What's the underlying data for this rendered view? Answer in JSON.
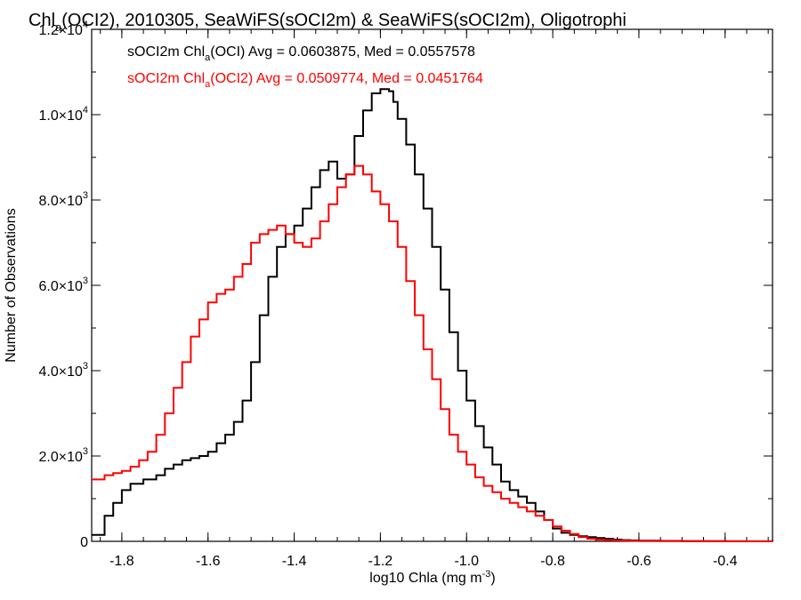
{
  "chart_data": {
    "type": "line",
    "title_main": "Chl",
    "title_sub": "a",
    "title_rest": "(OCI2), 2010305, SeaWiFS(sOCI2m) & SeaWiFS(sOCI2m), Oligotrophi",
    "xlabel_main": "log10 Chla (mg m",
    "xlabel_sup": "-3",
    "xlabel_end": ")",
    "ylabel": "Number of Observations",
    "xlim": [
      -1.87,
      -0.29
    ],
    "ylim": [
      0,
      12000
    ],
    "x_ticks": [
      {
        "value": -1.8,
        "label": "-1.8"
      },
      {
        "value": -1.6,
        "label": "-1.6"
      },
      {
        "value": -1.4,
        "label": "-1.4"
      },
      {
        "value": -1.2,
        "label": "-1.2"
      },
      {
        "value": -1.0,
        "label": "-1.0"
      },
      {
        "value": -0.8,
        "label": "-0.8"
      },
      {
        "value": -0.6,
        "label": "-0.6"
      },
      {
        "value": -0.4,
        "label": "-0.4"
      }
    ],
    "y_ticks": [
      {
        "value": 0,
        "mant": "0",
        "exp": ""
      },
      {
        "value": 2000,
        "mant": "2.0×10",
        "exp": "3"
      },
      {
        "value": 4000,
        "mant": "4.0×10",
        "exp": "3"
      },
      {
        "value": 6000,
        "mant": "6.0×10",
        "exp": "3"
      },
      {
        "value": 8000,
        "mant": "8.0×10",
        "exp": "3"
      },
      {
        "value": 10000,
        "mant": "1.0×10",
        "exp": "4"
      },
      {
        "value": 12000,
        "mant": "1.2×10",
        "exp": "4"
      }
    ],
    "series": [
      {
        "name_pre": "sOCI2m Chl",
        "name_sub": "a",
        "name_post": "(OCI) Avg = 0.0603875, Med = 0.0557578",
        "color": "#000000",
        "x": [
          -1.87,
          -1.84,
          -1.82,
          -1.8,
          -1.78,
          -1.75,
          -1.72,
          -1.7,
          -1.68,
          -1.66,
          -1.64,
          -1.62,
          -1.6,
          -1.58,
          -1.56,
          -1.54,
          -1.52,
          -1.5,
          -1.48,
          -1.46,
          -1.44,
          -1.42,
          -1.4,
          -1.38,
          -1.36,
          -1.34,
          -1.32,
          -1.3,
          -1.28,
          -1.26,
          -1.24,
          -1.22,
          -1.2,
          -1.18,
          -1.17,
          -1.16,
          -1.14,
          -1.12,
          -1.1,
          -1.08,
          -1.06,
          -1.04,
          -1.02,
          -1.0,
          -0.98,
          -0.96,
          -0.94,
          -0.92,
          -0.9,
          -0.88,
          -0.86,
          -0.84,
          -0.82,
          -0.8,
          -0.78,
          -0.76,
          -0.74,
          -0.72,
          -0.7,
          -0.68,
          -0.66,
          -0.64,
          -0.62,
          -0.6,
          -0.55,
          -0.5,
          -0.45,
          -0.4,
          -0.35,
          -0.29
        ],
        "y": [
          150,
          600,
          900,
          1200,
          1350,
          1450,
          1550,
          1700,
          1800,
          1900,
          1950,
          2000,
          2100,
          2300,
          2500,
          2800,
          3300,
          4200,
          5300,
          6200,
          6900,
          7200,
          7400,
          7800,
          8300,
          8700,
          8900,
          8500,
          8600,
          9500,
          10100,
          10500,
          10600,
          10550,
          10300,
          9900,
          9300,
          8600,
          7800,
          6900,
          5900,
          4900,
          4000,
          3300,
          2700,
          2200,
          1800,
          1400,
          1200,
          1050,
          900,
          700,
          500,
          300,
          200,
          150,
          120,
          100,
          80,
          60,
          40,
          30,
          20,
          15,
          10,
          5,
          5,
          3,
          2,
          0
        ]
      },
      {
        "name_pre": "sOCI2m Chl",
        "name_sub": "a",
        "name_post": "(OCI2) Avg = 0.0509774, Med = 0.0451764",
        "color": "#ff0000",
        "x": [
          -1.87,
          -1.84,
          -1.82,
          -1.8,
          -1.78,
          -1.76,
          -1.74,
          -1.72,
          -1.7,
          -1.68,
          -1.66,
          -1.64,
          -1.62,
          -1.6,
          -1.58,
          -1.56,
          -1.54,
          -1.52,
          -1.5,
          -1.48,
          -1.46,
          -1.44,
          -1.42,
          -1.4,
          -1.38,
          -1.36,
          -1.34,
          -1.32,
          -1.3,
          -1.28,
          -1.26,
          -1.24,
          -1.22,
          -1.2,
          -1.18,
          -1.16,
          -1.14,
          -1.12,
          -1.1,
          -1.08,
          -1.06,
          -1.04,
          -1.02,
          -1.0,
          -0.98,
          -0.96,
          -0.94,
          -0.92,
          -0.9,
          -0.88,
          -0.86,
          -0.84,
          -0.82,
          -0.8,
          -0.78,
          -0.76,
          -0.74,
          -0.72,
          -0.7,
          -0.68,
          -0.66,
          -0.64,
          -0.62,
          -0.6,
          -0.55,
          -0.5,
          -0.45,
          -0.4,
          -0.35,
          -0.29
        ],
        "y": [
          1450,
          1550,
          1600,
          1650,
          1750,
          1900,
          2100,
          2500,
          3000,
          3600,
          4200,
          4800,
          5200,
          5600,
          5800,
          5900,
          6200,
          6500,
          7000,
          7200,
          7300,
          7400,
          7200,
          7000,
          6900,
          7100,
          7500,
          7900,
          8300,
          8600,
          8800,
          8600,
          8200,
          7900,
          7500,
          6900,
          6100,
          5300,
          4500,
          3800,
          3100,
          2500,
          2100,
          1800,
          1500,
          1300,
          1150,
          1000,
          900,
          800,
          700,
          600,
          500,
          350,
          250,
          170,
          100,
          60,
          40,
          30,
          20,
          15,
          10,
          8,
          5,
          4,
          3,
          2,
          1,
          0
        ]
      }
    ]
  }
}
